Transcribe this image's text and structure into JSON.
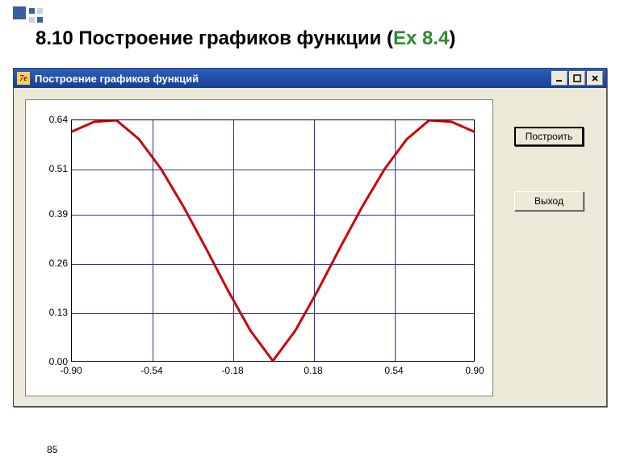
{
  "slide": {
    "title_prefix": "8.10 Построение графиков функции (",
    "title_ex": "Ex 8.4",
    "title_suffix": ")",
    "page_number": "85"
  },
  "window": {
    "title": "Построение графиков функций",
    "icon_text": "7e",
    "buttons": {
      "build": "Построить",
      "exit": "Выход"
    }
  },
  "chart": {
    "type": "line",
    "xlim": [
      -0.9,
      0.9
    ],
    "ylim": [
      0.0,
      0.64
    ],
    "xtick_labels": [
      "-0.90",
      "-0.54",
      "-0.18",
      "0.18",
      "0.54",
      "0.90"
    ],
    "xtick_values": [
      -0.9,
      -0.54,
      -0.18,
      0.18,
      0.54,
      0.9
    ],
    "ytick_labels": [
      "0.00",
      "0.13",
      "0.26",
      "0.39",
      "0.51",
      "0.64"
    ],
    "ytick_values": [
      0.0,
      0.13,
      0.26,
      0.39,
      0.51,
      0.64
    ],
    "grid_color": "#3030a0",
    "line_color": "#d00000",
    "line_width": 3,
    "background_color": "#ffffff",
    "tick_fontsize": 12,
    "series": {
      "x": [
        -0.9,
        -0.8,
        -0.7,
        -0.6,
        -0.5,
        -0.4,
        -0.3,
        -0.2,
        -0.1,
        0.0,
        0.1,
        0.2,
        0.3,
        0.4,
        0.5,
        0.6,
        0.7,
        0.8,
        0.9
      ],
      "y": [
        0.61,
        0.636,
        0.64,
        0.59,
        0.51,
        0.41,
        0.3,
        0.186,
        0.08,
        0.0,
        0.08,
        0.186,
        0.3,
        0.41,
        0.51,
        0.59,
        0.64,
        0.636,
        0.61
      ]
    }
  },
  "colors": {
    "slide_bg": "#ffffff",
    "accent_square": "#3a5fa0",
    "accent_square_light": "#c5d0e8",
    "titlebar_top": "#2a5fc0",
    "titlebar_bottom": "#1a3f90",
    "client_bg": "#ece9d8",
    "ex_color": "#2e8b2e"
  }
}
